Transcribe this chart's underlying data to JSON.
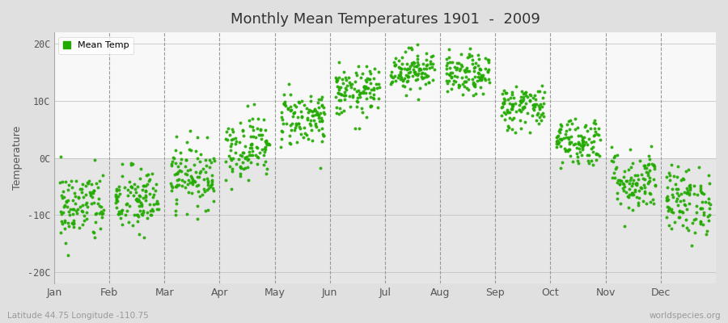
{
  "title": "Monthly Mean Temperatures 1901  -  2009",
  "ylabel": "Temperature",
  "xlabel_months": [
    "Jan",
    "Feb",
    "Mar",
    "Apr",
    "May",
    "Jun",
    "Jul",
    "Aug",
    "Sep",
    "Oct",
    "Nov",
    "Dec"
  ],
  "ytick_labels": [
    "20C",
    "10C",
    "0C",
    "-10C",
    "-20C"
  ],
  "ytick_values": [
    20,
    10,
    0,
    -10,
    -20
  ],
  "ylim": [
    -22,
    22
  ],
  "plot_bg_color": "#f0f0f0",
  "outer_bg_color": "#e0e0e0",
  "dot_color": "#22aa00",
  "dot_size": 8,
  "legend_label": "Mean Temp",
  "footer_left": "Latitude 44.75 Longitude -110.75",
  "footer_right": "worldspecies.org",
  "n_years": 109,
  "monthly_means": [
    -8.5,
    -7.5,
    -3.0,
    2.0,
    7.0,
    11.5,
    15.5,
    14.5,
    9.0,
    3.0,
    -4.0,
    -7.5
  ],
  "monthly_stds": [
    3.2,
    3.0,
    2.8,
    2.8,
    2.5,
    2.2,
    1.8,
    1.8,
    2.0,
    2.2,
    2.8,
    3.0
  ],
  "seed": 42
}
